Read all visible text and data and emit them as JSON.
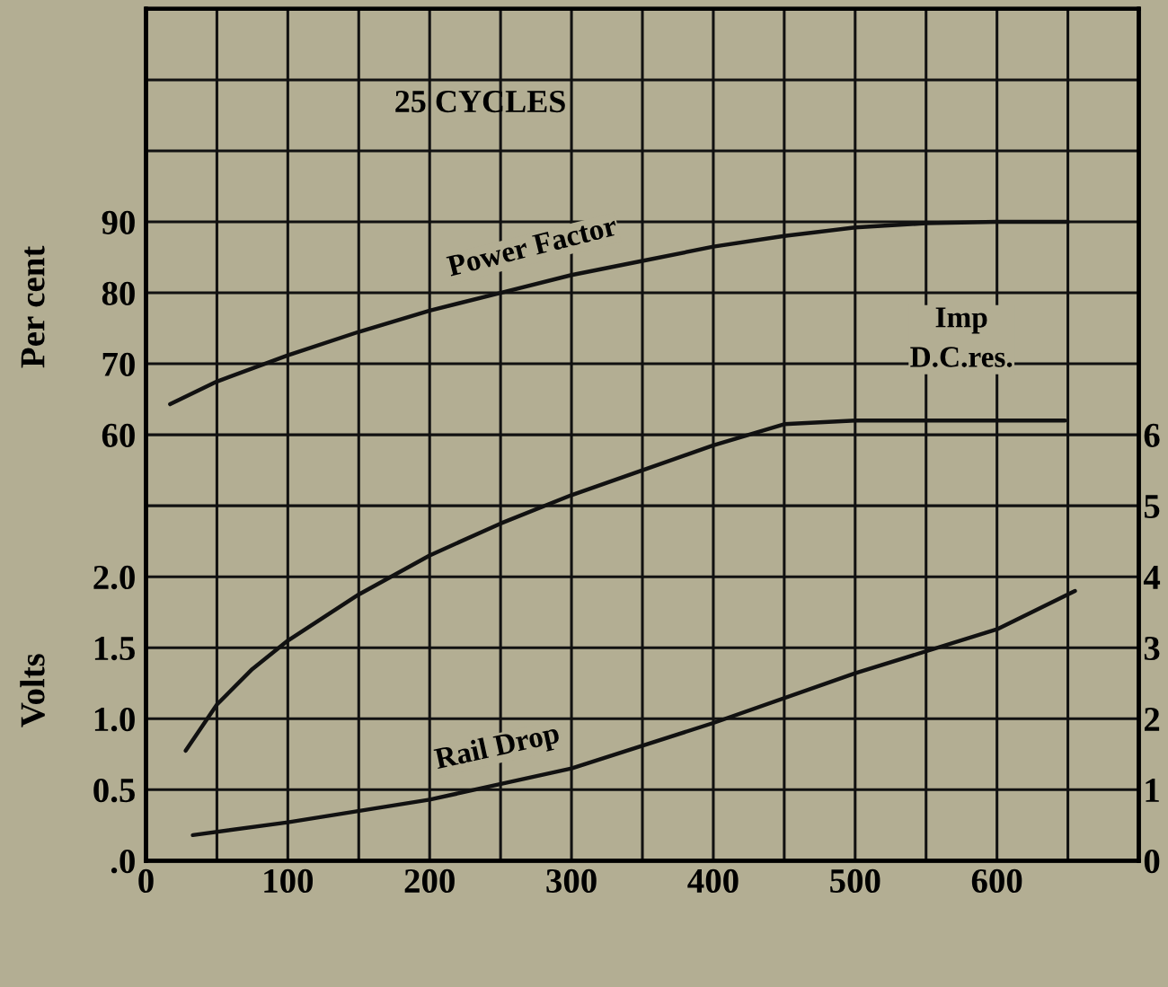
{
  "chart_data": {
    "type": "line",
    "title": "25 CYCLES",
    "xlabel": null,
    "ylabel": "Volts",
    "y3label": "Per cent",
    "xlim": [
      0,
      700
    ],
    "xticks": [
      0,
      {
        "value": 50,
        "label": null
      },
      100,
      {
        "value": 150,
        "label": null
      },
      200,
      {
        "value": 250,
        "label": null
      },
      300,
      {
        "value": 350,
        "label": null
      },
      400,
      {
        "value": 450,
        "label": null
      },
      500,
      {
        "value": 550,
        "label": null
      },
      600,
      {
        "value": 650,
        "label": null
      },
      {
        "value": 700,
        "label": null
      }
    ],
    "ylim": [
      0,
      6
    ],
    "yticks": [
      {
        "value": 0,
        "label": ".0"
      },
      0.5,
      {
        "value": 1,
        "label": "1.0"
      },
      1.5,
      {
        "value": 2,
        "label": "2.0"
      }
    ],
    "y2lim": [
      0,
      12
    ],
    "y2ticks": [
      0,
      1,
      2,
      3,
      4,
      5,
      6,
      {
        "value": 7,
        "label": null
      },
      {
        "value": 8,
        "label": null
      },
      {
        "value": 9,
        "label": null
      },
      {
        "value": 10,
        "label": null
      },
      {
        "value": 11,
        "label": null
      },
      {
        "value": 12,
        "label": null
      }
    ],
    "y3lim": [
      0,
      120
    ],
    "y3ticks": [
      60,
      70,
      80,
      90
    ],
    "grid": true,
    "legend": false,
    "marker": "none",
    "line_style": "solid",
    "series": [
      {
        "name": "Power Factor",
        "color": "#111111",
        "axis": "y3",
        "x": [
          17,
          50,
          100,
          150,
          200,
          250,
          300,
          350,
          400,
          450,
          500,
          550,
          600,
          650
        ],
        "values": [
          64.3,
          67.5,
          71.2,
          74.5,
          77.5,
          80,
          82.5,
          84.5,
          86.5,
          88,
          89.2,
          89.8,
          90,
          90
        ]
      },
      {
        "name": "Imp\nD.C.res.",
        "color": "#111111",
        "axis": "y2",
        "x": [
          28,
          50,
          75,
          100,
          150,
          200,
          250,
          300,
          350,
          400,
          450,
          500,
          550,
          600,
          648
        ],
        "values": [
          1.55,
          2.2,
          2.7,
          3.1,
          3.75,
          4.3,
          4.75,
          5.15,
          5.5,
          5.85,
          6.15,
          6.2,
          6.2,
          6.2,
          6.2
        ]
      },
      {
        "name": "Rail Drop",
        "color": "#111111",
        "axis": "y",
        "x": [
          33,
          100,
          200,
          300,
          400,
          500,
          600,
          655
        ],
        "values": [
          0.18,
          0.27,
          0.43,
          0.65,
          0.97,
          1.32,
          1.63,
          1.9
        ]
      }
    ]
  }
}
